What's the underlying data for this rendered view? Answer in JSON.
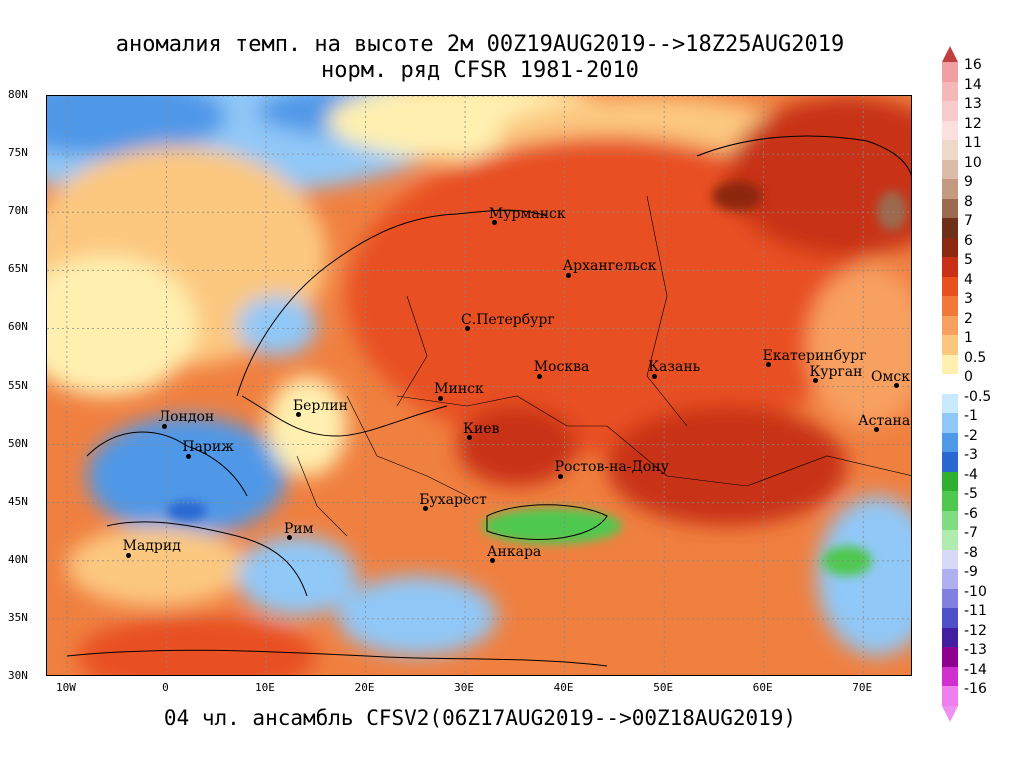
{
  "title_line1": "аномалия темп. на высоте 2м 00Z19AUG2019-->18Z25AUG2019",
  "title_line2": "норм. ряд CFSR 1981-2010",
  "footer": "04 чл. ансамбль CFSV2(06Z17AUG2019-->00Z18AUG2019)",
  "map": {
    "lon_range": [
      -12,
      75
    ],
    "lat_range": [
      30,
      80
    ],
    "lat_labels": [
      "80N",
      "75N",
      "70N",
      "65N",
      "60N",
      "55N",
      "50N",
      "45N",
      "40N",
      "35N",
      "30N"
    ],
    "lat_values": [
      80,
      75,
      70,
      65,
      60,
      55,
      50,
      45,
      40,
      35,
      30
    ],
    "lon_labels": [
      "10W",
      "0",
      "10E",
      "20E",
      "30E",
      "40E",
      "50E",
      "60E",
      "70E"
    ],
    "lon_values": [
      -10,
      0,
      10,
      20,
      30,
      40,
      50,
      60,
      70
    ],
    "cities": [
      {
        "name": "Мурманск",
        "lon": 33.1,
        "lat": 69.0
      },
      {
        "name": "Архангельск",
        "lon": 40.5,
        "lat": 64.5
      },
      {
        "name": "С.Петербург",
        "lon": 30.3,
        "lat": 59.9
      },
      {
        "name": "Москва",
        "lon": 37.6,
        "lat": 55.8
      },
      {
        "name": "Казань",
        "lon": 49.1,
        "lat": 55.8
      },
      {
        "name": "Екатеринбург",
        "lon": 60.6,
        "lat": 56.8
      },
      {
        "name": "Курган",
        "lon": 65.3,
        "lat": 55.4
      },
      {
        "name": "Омск",
        "lon": 73.4,
        "lat": 55.0
      },
      {
        "name": "Астана",
        "lon": 71.4,
        "lat": 51.2
      },
      {
        "name": "Минск",
        "lon": 27.6,
        "lat": 53.9
      },
      {
        "name": "Киев",
        "lon": 30.5,
        "lat": 50.5
      },
      {
        "name": "Берлин",
        "lon": 13.4,
        "lat": 52.5
      },
      {
        "name": "Лондон",
        "lon": -0.1,
        "lat": 51.5
      },
      {
        "name": "Париж",
        "lon": 2.3,
        "lat": 48.9
      },
      {
        "name": "Ростов-на-Дону",
        "lon": 39.7,
        "lat": 47.2
      },
      {
        "name": "Бухарест",
        "lon": 26.1,
        "lat": 44.4
      },
      {
        "name": "Рим",
        "lon": 12.5,
        "lat": 41.9
      },
      {
        "name": "Мадрид",
        "lon": -3.7,
        "lat": 40.4
      },
      {
        "name": "Анкара",
        "lon": 32.9,
        "lat": 39.9
      }
    ]
  },
  "legend": {
    "labels": [
      "16",
      "14",
      "13",
      "12",
      "11",
      "10",
      "9",
      "8",
      "7",
      "6",
      "5",
      "4",
      "3",
      "2",
      "1",
      "0.5",
      "0",
      "-0.5",
      "-1",
      "-2",
      "-3",
      "-4",
      "-5",
      "-6",
      "-7",
      "-8",
      "-9",
      "-10",
      "-11",
      "-12",
      "-13",
      "-14",
      "-16"
    ],
    "colors": [
      "#f0a0a0",
      "#f4b8b8",
      "#f8cccc",
      "#fce0e0",
      "#eed8c8",
      "#dcbca8",
      "#c49a80",
      "#9c6a50",
      "#6e3018",
      "#8c2810",
      "#c83018",
      "#e85020",
      "#f07838",
      "#f8a060",
      "#fcc880",
      "#fff0b0",
      "#ffffff",
      "#c8eaff",
      "#90c8f8",
      "#5098e8",
      "#2868d0",
      "#30b030",
      "#50c850",
      "#80dc80",
      "#b0ecb0",
      "#d8d8f8",
      "#b0b0f0",
      "#8080e0",
      "#5050c8",
      "#4020a0",
      "#900090",
      "#d030d0",
      "#f080f0"
    ],
    "arrow_top": "#c04040",
    "arrow_bottom": "#f090f0"
  },
  "colors": {
    "warm_anomaly": "#e85020",
    "strong_warm": "#c83018",
    "cold_anomaly": "#5098e8",
    "sea_cold": "#50c850"
  }
}
